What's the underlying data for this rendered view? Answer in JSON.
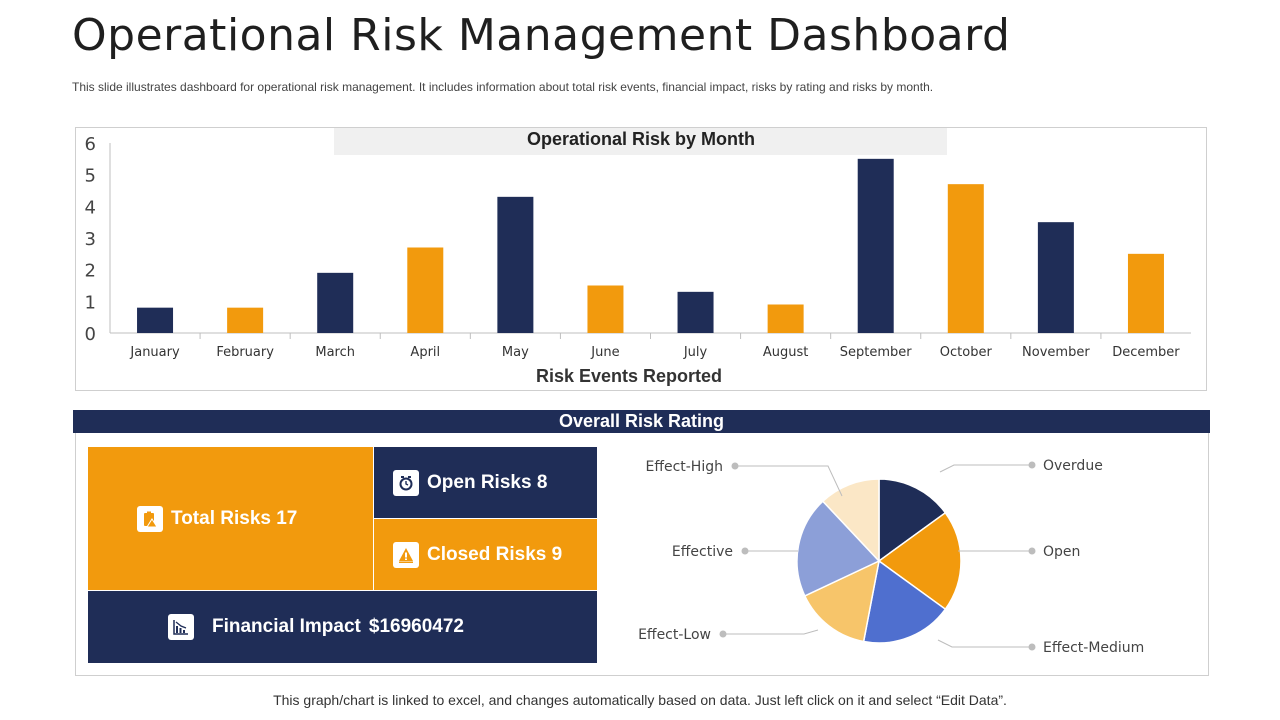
{
  "title": "Operational Risk Management Dashboard",
  "subtitle": "This slide illustrates dashboard for operational risk management. It includes information about total risk events, financial impact, risks by rating and risks by month.",
  "footer": "This graph/chart is linked to excel, and changes automatically based on data. Just left click on it and select “Edit Data”.",
  "colors": {
    "navy": "#1f2d57",
    "orange": "#f29a0d",
    "header_grey": "#f0f0f0"
  },
  "chart_data": [
    {
      "type": "bar",
      "title": "Operational Risk by Month",
      "xlabel": "Risk Events Reported",
      "ylabel": "",
      "ylim": [
        0,
        6
      ],
      "yticks": [
        "0",
        "1",
        "2",
        "3",
        "4",
        "5",
        "6"
      ],
      "categories": [
        "January",
        "February",
        "March",
        "April",
        "May",
        "June",
        "July",
        "August",
        "September",
        "October",
        "November",
        "December"
      ],
      "values": [
        0.8,
        0.8,
        1.9,
        2.7,
        4.3,
        1.5,
        1.3,
        0.9,
        5.5,
        4.7,
        3.5,
        2.5
      ],
      "bar_colors": [
        "#1f2d57",
        "#f29a0d",
        "#1f2d57",
        "#f29a0d",
        "#1f2d57",
        "#f29a0d",
        "#1f2d57",
        "#f29a0d",
        "#1f2d57",
        "#f29a0d",
        "#1f2d57",
        "#f29a0d"
      ]
    },
    {
      "type": "pie",
      "title": "Overall Risk Rating",
      "labels": [
        "Overdue",
        "Open",
        "Effect-Medium",
        "Effect-Low",
        "Effective",
        "Effect-High"
      ],
      "values": [
        15,
        20,
        18,
        15,
        20,
        12
      ],
      "colors": [
        "#1f2d57",
        "#f29a0d",
        "#4f6fcf",
        "#f7c56a",
        "#8c9fd8",
        "#fbe7c6"
      ]
    }
  ],
  "tiles": {
    "total": {
      "label": "Total Risks 17",
      "icon": "clipboard-warning-icon"
    },
    "open": {
      "label": "Open Risks 8",
      "icon": "wall-clock-icon"
    },
    "closed": {
      "label": "Closed Risks 9",
      "icon": "warning-triangle-icon"
    },
    "financial": {
      "label": "Financial Impact",
      "value": "$16960472",
      "icon": "declining-chart-icon"
    }
  },
  "rating_band": "Overall Risk Rating"
}
